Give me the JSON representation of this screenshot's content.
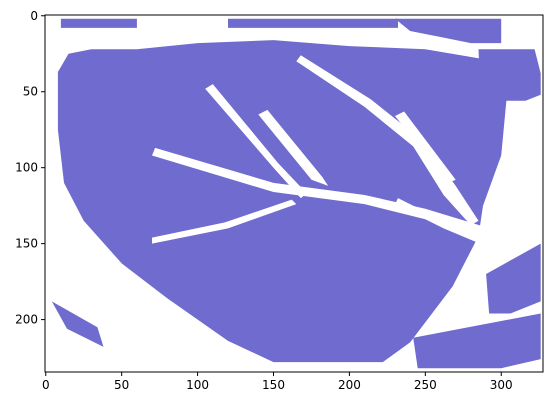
{
  "chart_data": {
    "type": "heatmap",
    "description_of_mark_color": "#6f6bcf",
    "background_color": "#ffffff",
    "xlim": [
      -0.5,
      327.5
    ],
    "ylim": [
      234.5,
      -0.5
    ],
    "x_ticks": [
      0,
      50,
      100,
      150,
      200,
      250,
      300
    ],
    "x_tick_labels": [
      "0",
      "50",
      "100",
      "150",
      "200",
      "250",
      "300"
    ],
    "y_ticks": [
      0,
      50,
      100,
      150,
      200
    ],
    "y_tick_labels": [
      "0",
      "50",
      "100",
      "150",
      "200"
    ],
    "regions": [
      {
        "name": "leaf-blade",
        "points": [
          [
            8,
            37
          ],
          [
            15,
            25
          ],
          [
            30,
            22
          ],
          [
            60,
            22
          ],
          [
            100,
            18
          ],
          [
            150,
            16
          ],
          [
            200,
            20
          ],
          [
            250,
            22
          ],
          [
            285,
            28
          ],
          [
            305,
            40
          ],
          [
            303,
            60
          ],
          [
            300,
            92
          ],
          [
            288,
            125
          ],
          [
            285,
            145
          ],
          [
            268,
            178
          ],
          [
            240,
            215
          ],
          [
            222,
            228
          ],
          [
            190,
            228
          ],
          [
            150,
            228
          ],
          [
            120,
            214
          ],
          [
            80,
            186
          ],
          [
            50,
            163
          ],
          [
            25,
            135
          ],
          [
            12,
            110
          ],
          [
            8,
            75
          ]
        ]
      },
      {
        "name": "top-left-strip",
        "points": [
          [
            10,
            2
          ],
          [
            60,
            2
          ],
          [
            60,
            8
          ],
          [
            10,
            8
          ]
        ]
      },
      {
        "name": "top-mid-strip",
        "points": [
          [
            120,
            2
          ],
          [
            232,
            2
          ],
          [
            232,
            8
          ],
          [
            120,
            8
          ]
        ]
      },
      {
        "name": "top-right-patch",
        "points": [
          [
            230,
            2
          ],
          [
            300,
            2
          ],
          [
            300,
            18
          ],
          [
            280,
            18
          ],
          [
            260,
            14
          ],
          [
            240,
            10
          ]
        ]
      },
      {
        "name": "right-blob",
        "points": [
          [
            285,
            22
          ],
          [
            322,
            22
          ],
          [
            326,
            38
          ],
          [
            326,
            52
          ],
          [
            316,
            56
          ],
          [
            292,
            56
          ],
          [
            286,
            48
          ]
        ]
      },
      {
        "name": "right-lower-wedge",
        "points": [
          [
            290,
            170
          ],
          [
            326,
            150
          ],
          [
            326,
            188
          ],
          [
            306,
            196
          ],
          [
            292,
            196
          ]
        ]
      },
      {
        "name": "bottom-right-speckle",
        "points": [
          [
            242,
            212
          ],
          [
            326,
            196
          ],
          [
            326,
            226
          ],
          [
            300,
            232
          ],
          [
            245,
            232
          ]
        ]
      },
      {
        "name": "bottom-left-speckle",
        "points": [
          [
            4,
            188
          ],
          [
            34,
            205
          ],
          [
            38,
            218
          ],
          [
            14,
            206
          ]
        ]
      }
    ],
    "gaps": [
      {
        "name": "midrib",
        "points": [
          [
            70,
            92
          ],
          [
            150,
            116
          ],
          [
            210,
            124
          ],
          [
            250,
            134
          ],
          [
            290,
            148
          ],
          [
            296,
            141
          ],
          [
            250,
            127
          ],
          [
            210,
            118
          ],
          [
            150,
            110
          ],
          [
            72,
            87
          ]
        ]
      },
      {
        "name": "vein-1",
        "points": [
          [
            105,
            48
          ],
          [
            150,
            100
          ],
          [
            168,
            120
          ],
          [
            172,
            117
          ],
          [
            153,
            97
          ],
          [
            110,
            45
          ]
        ]
      },
      {
        "name": "vein-2",
        "points": [
          [
            140,
            65
          ],
          [
            175,
            108
          ],
          [
            186,
            112
          ],
          [
            182,
            106
          ],
          [
            146,
            62
          ]
        ]
      },
      {
        "name": "vein-3",
        "points": [
          [
            165,
            30
          ],
          [
            210,
            60
          ],
          [
            242,
            86
          ],
          [
            262,
            118
          ],
          [
            280,
            138
          ],
          [
            285,
            135
          ],
          [
            270,
            112
          ],
          [
            248,
            82
          ],
          [
            214,
            55
          ],
          [
            168,
            26
          ]
        ]
      },
      {
        "name": "vein-4",
        "points": [
          [
            230,
            66
          ],
          [
            265,
            110
          ],
          [
            270,
            108
          ],
          [
            236,
            63
          ]
        ]
      },
      {
        "name": "vein-5",
        "points": [
          [
            70,
            150
          ],
          [
            120,
            140
          ],
          [
            165,
            124
          ],
          [
            162,
            121
          ],
          [
            118,
            136
          ],
          [
            70,
            146
          ]
        ]
      },
      {
        "name": "vein-6",
        "points": [
          [
            230,
            124
          ],
          [
            262,
            140
          ],
          [
            286,
            150
          ],
          [
            288,
            147
          ],
          [
            264,
            136
          ],
          [
            232,
            120
          ]
        ]
      }
    ]
  }
}
